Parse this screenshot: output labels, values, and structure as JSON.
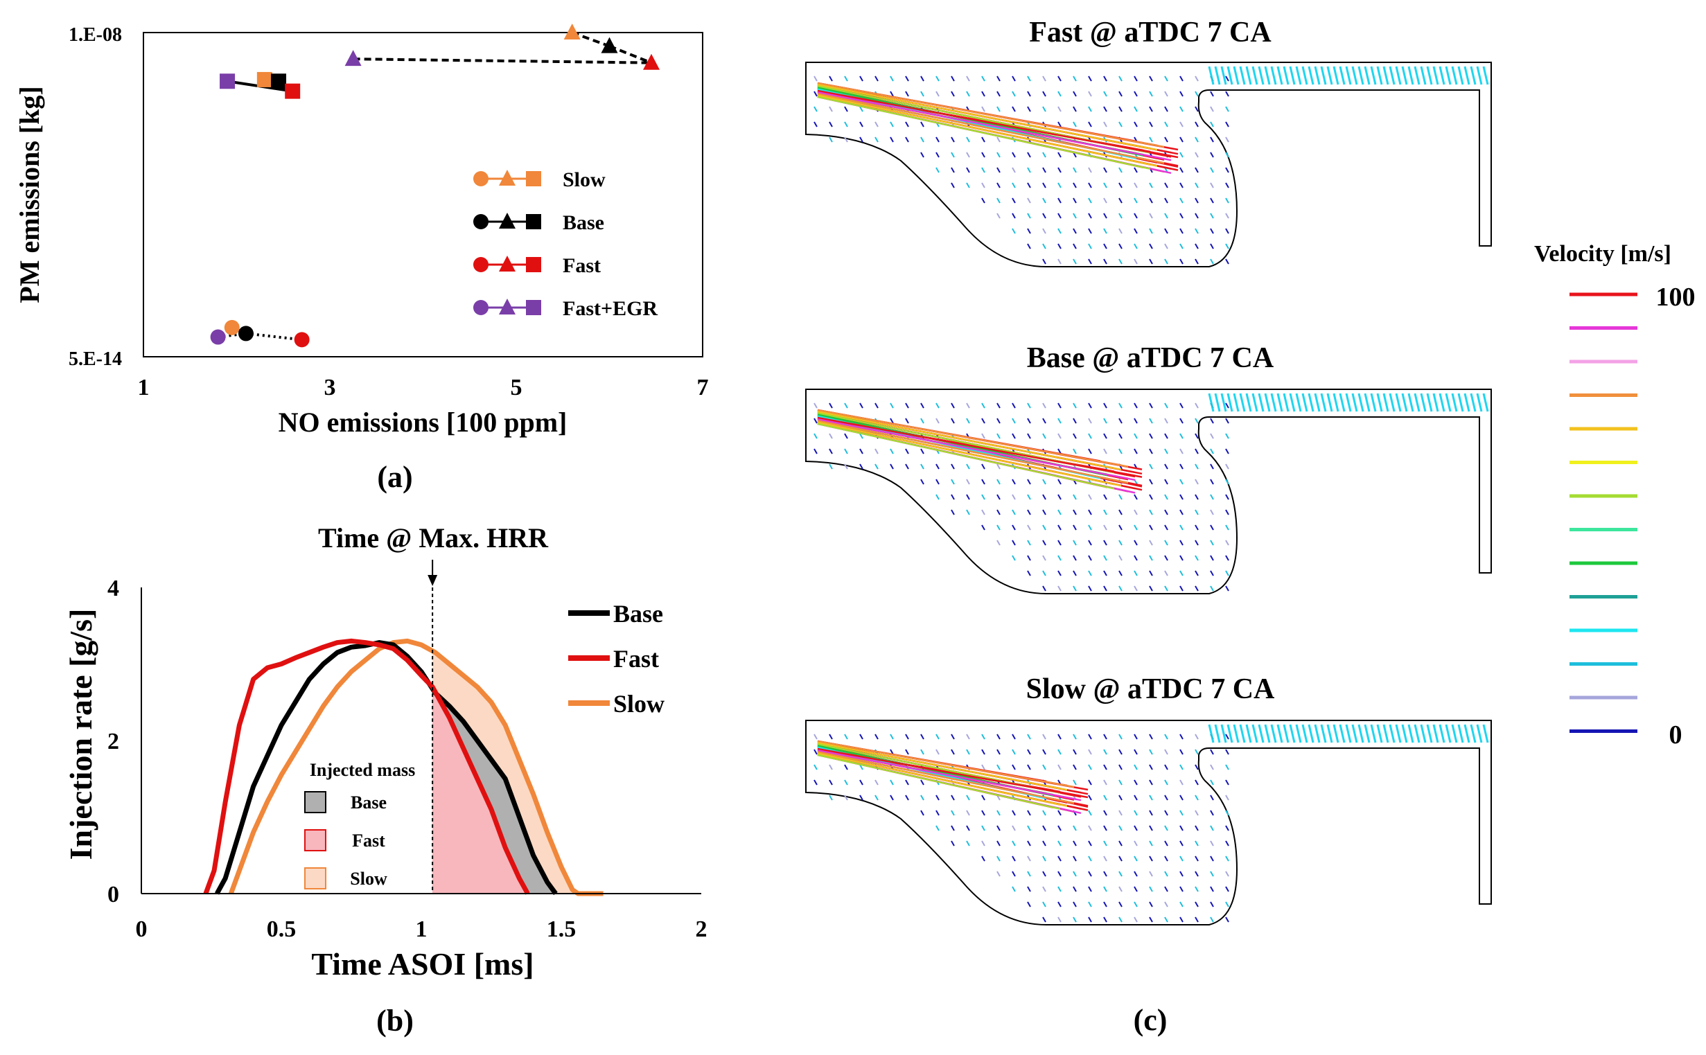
{
  "panel_a": {
    "caption": "(a)",
    "xlabel": "NO emissions [100 ppm]",
    "ylabel": "PM emissions [kg]",
    "xticks": [
      "1",
      "3",
      "5",
      "7"
    ],
    "yticks": [
      "1.E-08",
      "5.E-14"
    ],
    "legend": [
      {
        "name": "Slow",
        "color": "#f0873a"
      },
      {
        "name": "Base",
        "color": "#000000"
      },
      {
        "name": "Fast",
        "color": "#e01010"
      },
      {
        "name": "Fast+EGR",
        "color": "#7a3ea8"
      }
    ]
  },
  "panel_b": {
    "caption": "(b)",
    "annotation": "Time @ Max. HRR",
    "xlabel": "Time ASOI [ms]",
    "ylabel": "Injection rate [g/s]",
    "xticks": [
      "0",
      "0.5",
      "1",
      "1.5",
      "2"
    ],
    "yticks": [
      "0",
      "2",
      "4"
    ],
    "legend": [
      "Base",
      "Fast",
      "Slow"
    ],
    "inset_title": "Injected mass",
    "inset_items": [
      "Base",
      "Fast",
      "Slow"
    ]
  },
  "panel_c": {
    "caption": "(c)",
    "titles": [
      "Fast @ aTDC 7 CA",
      "Base @ aTDC 7 CA",
      "Slow @ aTDC 7 CA"
    ],
    "colorbar_title": "Velocity [m/s]",
    "colorbar_max": "100",
    "colorbar_min": "0",
    "colorbar_colors": [
      "#e8141c",
      "#e636d8",
      "#f3a2e6",
      "#f0903c",
      "#f2c11e",
      "#f0f01e",
      "#a4dc32",
      "#3ce69c",
      "#1ec83c",
      "#1ea096",
      "#1ee6f0",
      "#1ebedc",
      "#a6a6dc",
      "#1414b4"
    ]
  },
  "chart_data": [
    {
      "type": "scatter",
      "title": "",
      "xlabel": "NO emissions [100 ppm]",
      "ylabel": "PM emissions [kg]",
      "xlim": [
        1,
        7
      ],
      "ylim": [
        5e-14,
        1e-08
      ],
      "yscale": "log",
      "legend_position": "right",
      "series": [
        {
          "name": "Slow",
          "color": "#f0873a",
          "points": [
            {
              "x": 1.95,
              "y": 1.5e-13,
              "marker": "circle"
            },
            {
              "x": 5.6,
              "y": 1e-08,
              "marker": "triangle"
            },
            {
              "x": 2.3,
              "y": 1.7e-09,
              "marker": "square"
            }
          ]
        },
        {
          "name": "Base",
          "color": "#000000",
          "points": [
            {
              "x": 2.1,
              "y": 1.2e-13,
              "marker": "circle"
            },
            {
              "x": 6.0,
              "y": 6e-09,
              "marker": "triangle"
            },
            {
              "x": 2.45,
              "y": 1.6e-09,
              "marker": "square"
            }
          ]
        },
        {
          "name": "Fast",
          "color": "#e01010",
          "points": [
            {
              "x": 2.7,
              "y": 9.5e-14,
              "marker": "circle"
            },
            {
              "x": 6.45,
              "y": 3.2e-09,
              "marker": "triangle"
            },
            {
              "x": 2.6,
              "y": 1.1e-09,
              "marker": "square"
            }
          ]
        },
        {
          "name": "Fast+EGR",
          "color": "#7a3ea8",
          "points": [
            {
              "x": 1.8,
              "y": 1.05e-13,
              "marker": "circle"
            },
            {
              "x": 3.25,
              "y": 3.7e-09,
              "marker": "triangle"
            },
            {
              "x": 1.9,
              "y": 1.6e-09,
              "marker": "square"
            }
          ]
        }
      ]
    },
    {
      "type": "line",
      "title": "",
      "xlabel": "Time ASOI [ms]",
      "ylabel": "Injection rate [g/s]",
      "xlim": [
        0,
        2
      ],
      "ylim": [
        0,
        4
      ],
      "vline_x": 1.04,
      "legend_position": "top-right",
      "series": [
        {
          "name": "Base",
          "color": "#000000",
          "points": [
            [
              0.27,
              0
            ],
            [
              0.3,
              0.2
            ],
            [
              0.35,
              0.8
            ],
            [
              0.4,
              1.4
            ],
            [
              0.45,
              1.8
            ],
            [
              0.5,
              2.2
            ],
            [
              0.55,
              2.5
            ],
            [
              0.6,
              2.8
            ],
            [
              0.65,
              3.0
            ],
            [
              0.7,
              3.15
            ],
            [
              0.75,
              3.22
            ],
            [
              0.8,
              3.24
            ],
            [
              0.85,
              3.28
            ],
            [
              0.9,
              3.25
            ],
            [
              0.95,
              3.1
            ],
            [
              1.0,
              2.9
            ],
            [
              1.05,
              2.62
            ],
            [
              1.1,
              2.45
            ],
            [
              1.15,
              2.25
            ],
            [
              1.2,
              2.0
            ],
            [
              1.25,
              1.75
            ],
            [
              1.3,
              1.5
            ],
            [
              1.35,
              1.0
            ],
            [
              1.4,
              0.5
            ],
            [
              1.45,
              0.15
            ],
            [
              1.48,
              0
            ]
          ]
        },
        {
          "name": "Fast",
          "color": "#e01010",
          "points": [
            [
              0.23,
              0
            ],
            [
              0.26,
              0.3
            ],
            [
              0.3,
              1.2
            ],
            [
              0.35,
              2.2
            ],
            [
              0.4,
              2.8
            ],
            [
              0.45,
              2.95
            ],
            [
              0.5,
              3.0
            ],
            [
              0.55,
              3.08
            ],
            [
              0.6,
              3.15
            ],
            [
              0.65,
              3.22
            ],
            [
              0.7,
              3.28
            ],
            [
              0.75,
              3.3
            ],
            [
              0.8,
              3.28
            ],
            [
              0.85,
              3.25
            ],
            [
              0.9,
              3.2
            ],
            [
              0.95,
              3.05
            ],
            [
              1.0,
              2.85
            ],
            [
              1.04,
              2.7
            ],
            [
              1.1,
              2.3
            ],
            [
              1.15,
              1.9
            ],
            [
              1.2,
              1.5
            ],
            [
              1.25,
              1.1
            ],
            [
              1.3,
              0.6
            ],
            [
              1.35,
              0.2
            ],
            [
              1.38,
              0
            ]
          ]
        },
        {
          "name": "Slow",
          "color": "#f0873a",
          "points": [
            [
              0.32,
              0
            ],
            [
              0.35,
              0.3
            ],
            [
              0.4,
              0.8
            ],
            [
              0.45,
              1.2
            ],
            [
              0.5,
              1.55
            ],
            [
              0.55,
              1.85
            ],
            [
              0.6,
              2.15
            ],
            [
              0.65,
              2.45
            ],
            [
              0.7,
              2.7
            ],
            [
              0.75,
              2.9
            ],
            [
              0.8,
              3.05
            ],
            [
              0.85,
              3.2
            ],
            [
              0.9,
              3.28
            ],
            [
              0.95,
              3.3
            ],
            [
              1.0,
              3.25
            ],
            [
              1.05,
              3.15
            ],
            [
              1.1,
              3.0
            ],
            [
              1.15,
              2.85
            ],
            [
              1.2,
              2.7
            ],
            [
              1.25,
              2.5
            ],
            [
              1.3,
              2.2
            ],
            [
              1.35,
              1.75
            ],
            [
              1.4,
              1.3
            ],
            [
              1.45,
              0.8
            ],
            [
              1.5,
              0.35
            ],
            [
              1.54,
              0.05
            ],
            [
              1.56,
              0
            ],
            [
              1.65,
              0
            ]
          ]
        }
      ]
    }
  ]
}
